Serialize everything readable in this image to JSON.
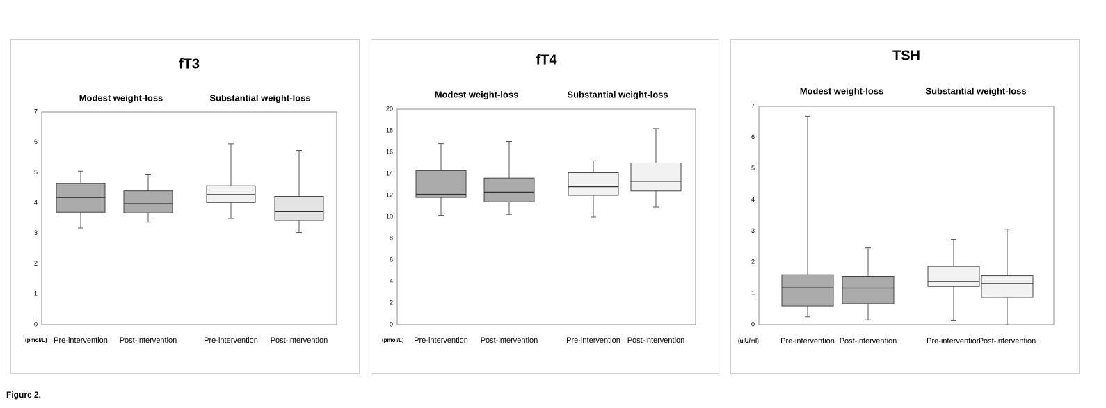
{
  "figure": {
    "caption": "Figure 2."
  },
  "chart_data": [
    {
      "type": "boxplot",
      "title": "fT3",
      "unit_label": "(pmol/L)",
      "ylim": [
        0,
        7
      ],
      "yticks": [
        0,
        1,
        2,
        3,
        4,
        5,
        6,
        7
      ],
      "groups": [
        "Modest weight-loss",
        "Substantial weight-loss"
      ],
      "categories": [
        "Pre-intervention",
        "Post-intervention",
        "Pre-intervention",
        "Post-intervention"
      ],
      "boxes": [
        {
          "group": "Modest weight-loss",
          "category": "Pre-intervention",
          "min": 3.18,
          "q1": 3.7,
          "median": 4.18,
          "q3": 4.64,
          "max": 5.05,
          "fill": "#ababab"
        },
        {
          "group": "Modest weight-loss",
          "category": "Post-intervention",
          "min": 3.37,
          "q1": 3.68,
          "median": 3.98,
          "q3": 4.4,
          "max": 4.93,
          "fill": "#ababab"
        },
        {
          "group": "Substantial weight-loss",
          "category": "Pre-intervention",
          "min": 3.5,
          "q1": 4.02,
          "median": 4.28,
          "q3": 4.57,
          "max": 5.95,
          "fill": "#f2f2f2"
        },
        {
          "group": "Substantial weight-loss",
          "category": "Post-intervention",
          "min": 3.03,
          "q1": 3.43,
          "median": 3.72,
          "q3": 4.22,
          "max": 5.73,
          "fill": "#e3e3e3"
        }
      ]
    },
    {
      "type": "boxplot",
      "title": "fT4",
      "unit_label": "(pmol/L)",
      "ylim": [
        0,
        20
      ],
      "yticks": [
        0,
        2,
        4,
        6,
        8,
        10,
        12,
        14,
        16,
        18,
        20
      ],
      "groups": [
        "Modest weight-loss",
        "Substantial weight-loss"
      ],
      "categories": [
        "Pre-intervention",
        "Post-intervention",
        "Pre-intervention",
        "Post-intervention"
      ],
      "boxes": [
        {
          "group": "Modest weight-loss",
          "category": "Pre-intervention",
          "min": 10.1,
          "q1": 11.8,
          "median": 12.1,
          "q3": 14.3,
          "max": 16.8,
          "fill": "#ababab"
        },
        {
          "group": "Modest weight-loss",
          "category": "Post-intervention",
          "min": 10.2,
          "q1": 11.4,
          "median": 12.3,
          "q3": 13.6,
          "max": 17.0,
          "fill": "#ababab"
        },
        {
          "group": "Substantial weight-loss",
          "category": "Pre-intervention",
          "min": 10.0,
          "q1": 12.0,
          "median": 12.8,
          "q3": 14.1,
          "max": 15.2,
          "fill": "#f2f2f2"
        },
        {
          "group": "Substantial weight-loss",
          "category": "Post-intervention",
          "min": 10.9,
          "q1": 12.4,
          "median": 13.3,
          "q3": 15.0,
          "max": 18.2,
          "fill": "#f2f2f2"
        }
      ]
    },
    {
      "type": "boxplot",
      "title": "TSH",
      "unit_label": "(uIU/ml)",
      "ylim": [
        0,
        7
      ],
      "yticks": [
        0,
        1,
        2,
        3,
        4,
        5,
        6,
        7
      ],
      "groups": [
        "Modest weight-loss",
        "Substantial weight-loss"
      ],
      "categories": [
        "Pre-intervention",
        "Post-intervention",
        "Pre-intervention",
        "Post-intervention"
      ],
      "boxes": [
        {
          "group": "Modest weight-loss",
          "category": "Pre-intervention",
          "min": 0.25,
          "q1": 0.6,
          "median": 1.18,
          "q3": 1.6,
          "max": 6.68,
          "fill": "#ababab"
        },
        {
          "group": "Modest weight-loss",
          "category": "Post-intervention",
          "min": 0.15,
          "q1": 0.67,
          "median": 1.17,
          "q3": 1.55,
          "max": 2.46,
          "fill": "#ababab"
        },
        {
          "group": "Substantial weight-loss",
          "category": "Pre-intervention",
          "min": 0.12,
          "q1": 1.22,
          "median": 1.38,
          "q3": 1.87,
          "max": 2.73,
          "fill": "#f2f2f2"
        },
        {
          "group": "Substantial weight-loss",
          "category": "Post-intervention",
          "min": 0.0,
          "q1": 0.87,
          "median": 1.32,
          "q3": 1.57,
          "max": 3.06,
          "fill": "#f2f2f2"
        }
      ]
    }
  ]
}
